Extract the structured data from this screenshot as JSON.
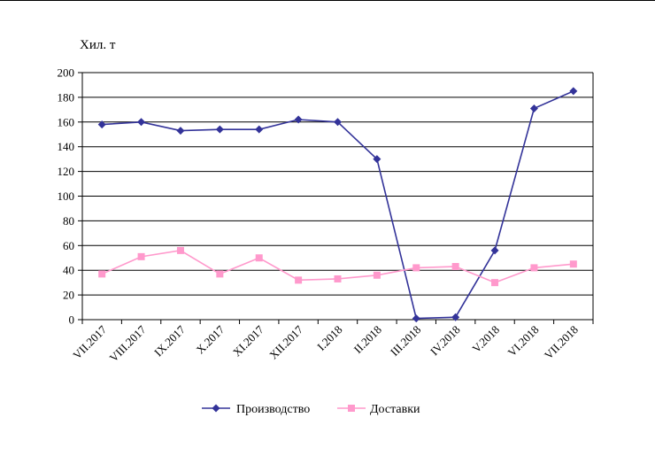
{
  "chart_data": {
    "type": "line",
    "title": "",
    "ylabel": "Хил. т",
    "xlabel": "",
    "ylim": [
      0,
      200
    ],
    "yticks": [
      0,
      20,
      40,
      60,
      80,
      100,
      120,
      140,
      160,
      180,
      200
    ],
    "grid": true,
    "legend_position": "bottom",
    "categories": [
      "VII.2017",
      "VIII.2017",
      "IX.2017",
      "X.2017",
      "XI.2017",
      "XII.2017",
      "I.2018",
      "II.2018",
      "III.2018",
      "IV.2018",
      "V.2018",
      "VI.2018",
      "VII.2018"
    ],
    "series": [
      {
        "name": "Производство",
        "color": "#333399",
        "marker": "diamond",
        "values": [
          158,
          160,
          153,
          154,
          154,
          162,
          160,
          130,
          1,
          2,
          56,
          171,
          185
        ]
      },
      {
        "name": "Доставки",
        "color": "#ff99cc",
        "marker": "square",
        "values": [
          37,
          51,
          56,
          37,
          50,
          32,
          33,
          36,
          42,
          43,
          30,
          42,
          45
        ]
      }
    ]
  }
}
